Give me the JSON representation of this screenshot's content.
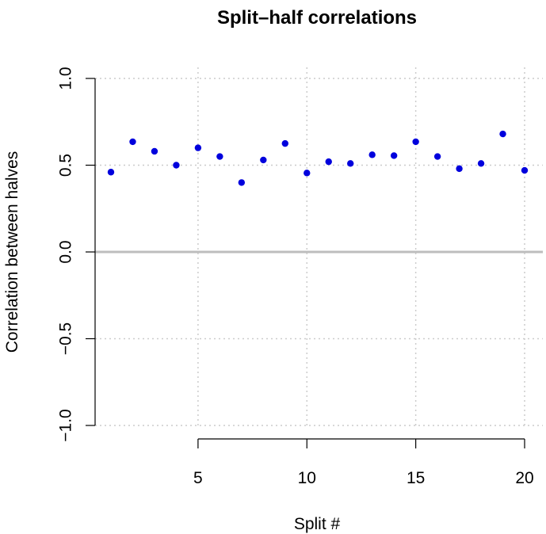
{
  "chart_data": {
    "type": "scatter",
    "title": "Split–half correlations",
    "xlabel": "Split #",
    "ylabel": "Correlation between halves",
    "x": [
      1,
      2,
      3,
      4,
      5,
      6,
      7,
      8,
      9,
      10,
      11,
      12,
      13,
      14,
      15,
      16,
      17,
      18,
      19,
      20
    ],
    "y": [
      0.46,
      0.635,
      0.58,
      0.5,
      0.6,
      0.55,
      0.4,
      0.53,
      0.625,
      0.455,
      0.52,
      0.51,
      0.56,
      0.555,
      0.635,
      0.55,
      0.48,
      0.51,
      0.68,
      0.47
    ],
    "xlim": [
      1,
      20
    ],
    "ylim": [
      -1,
      1
    ],
    "x_ticks": [
      5,
      10,
      15,
      20
    ],
    "y_ticks": [
      -1.0,
      -0.5,
      0.0,
      0.5,
      1.0
    ],
    "x_tick_labels": [
      "5",
      "10",
      "15",
      "20"
    ],
    "y_tick_labels": [
      "−1.0",
      "−0.5",
      "0.0",
      "0.5",
      "1.0"
    ],
    "grid": true,
    "reference_line_y": 0,
    "point_color": "#0000dd",
    "grid_color": "#cccccc",
    "reference_line_color": "#bdbdbd"
  }
}
